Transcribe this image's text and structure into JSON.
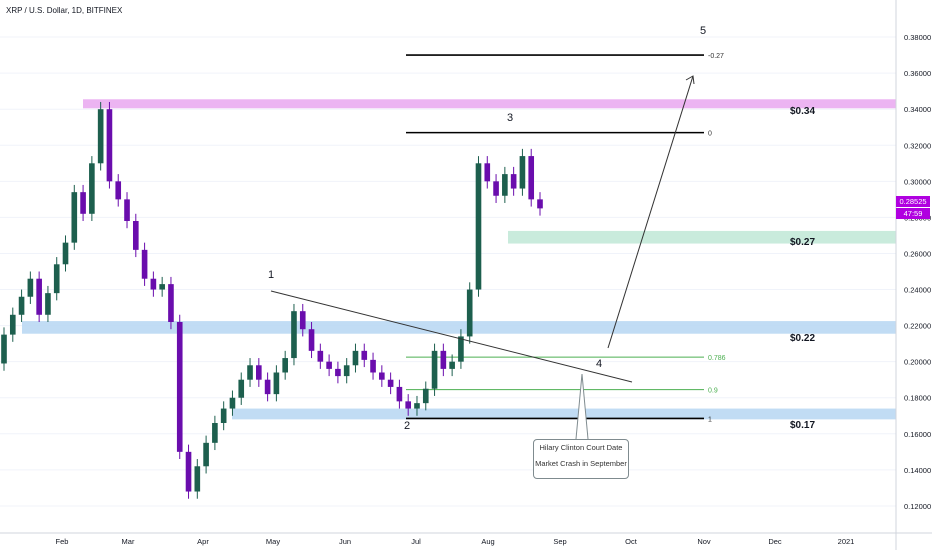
{
  "header": {
    "symbol": "XRP / U.S. Dollar, 1D, BITFINEX"
  },
  "price_axis": {
    "labels": [
      "0.38000",
      "0.36000",
      "0.34000",
      "0.32000",
      "0.30000",
      "0.28000",
      "0.26000",
      "0.24000",
      "0.22000",
      "0.20000",
      "0.18000",
      "0.16000",
      "0.14000",
      "0.12000"
    ],
    "current_price": "0.28525",
    "countdown": "47:59"
  },
  "time_axis": {
    "labels": [
      "Feb",
      "Mar",
      "Apr",
      "May",
      "Jun",
      "Jul",
      "Aug",
      "Sep",
      "Oct",
      "Nov",
      "Dec",
      "2021"
    ]
  },
  "zones": {
    "colors": {
      "resistance": "#e9a7f0",
      "support": "#b6d6f2",
      "green_support": "#bfe8d6"
    },
    "levels": [
      {
        "label": "$0.34",
        "from": 0.3405,
        "to": 0.3455,
        "color": "#e9a7f0"
      },
      {
        "label": "$0.27",
        "from": 0.2655,
        "to": 0.2725,
        "color": "#bfe8d6"
      },
      {
        "label": "$0.22",
        "from": 0.2155,
        "to": 0.2225,
        "color": "#b6d6f2"
      },
      {
        "label": "$0.17",
        "from": 0.168,
        "to": 0.174,
        "color": "#b6d6f2"
      }
    ]
  },
  "fib": [
    {
      "label": "-0.27",
      "price": 0.37,
      "color": "#000000"
    },
    {
      "label": "0",
      "price": 0.327,
      "color": "#000000"
    },
    {
      "label": "0.786",
      "price": 0.2025,
      "color": "#4caf50"
    },
    {
      "label": "0.9",
      "price": 0.1845,
      "color": "#4caf50"
    },
    {
      "label": "1",
      "price": 0.1685,
      "color": "#000000"
    }
  ],
  "waves": [
    "1",
    "2",
    "3",
    "4",
    "5"
  ],
  "annotation": {
    "line1": "Hilary Clinton Court Date",
    "line2": "Market Crash in September"
  },
  "chart_data": {
    "type": "candlestick",
    "title": "XRP / U.S. Dollar, 1D, BITFINEX",
    "ylim": [
      0.105,
      0.395
    ],
    "series": [
      {
        "name": "XRP",
        "points": [
          [
            0,
            0.199,
            0.215
          ],
          [
            1,
            0.215,
            0.226
          ],
          [
            2,
            0.226,
            0.236
          ],
          [
            3,
            0.236,
            0.246
          ],
          [
            4,
            0.246,
            0.226
          ],
          [
            5,
            0.226,
            0.238
          ],
          [
            6,
            0.238,
            0.254
          ],
          [
            7,
            0.254,
            0.266
          ],
          [
            8,
            0.266,
            0.294
          ],
          [
            9,
            0.294,
            0.282
          ],
          [
            10,
            0.282,
            0.31
          ],
          [
            11,
            0.31,
            0.34
          ],
          [
            12,
            0.34,
            0.3
          ],
          [
            13,
            0.3,
            0.29
          ],
          [
            14,
            0.29,
            0.278
          ],
          [
            15,
            0.278,
            0.262
          ],
          [
            16,
            0.262,
            0.246
          ],
          [
            17,
            0.246,
            0.24
          ],
          [
            18,
            0.24,
            0.243
          ],
          [
            19,
            0.243,
            0.222
          ],
          [
            20,
            0.222,
            0.15
          ],
          [
            21,
            0.15,
            0.128
          ],
          [
            22,
            0.128,
            0.142
          ],
          [
            23,
            0.142,
            0.155
          ],
          [
            24,
            0.155,
            0.166
          ],
          [
            25,
            0.166,
            0.174
          ],
          [
            26,
            0.174,
            0.18
          ],
          [
            27,
            0.18,
            0.19
          ],
          [
            28,
            0.19,
            0.198
          ],
          [
            29,
            0.198,
            0.19
          ],
          [
            30,
            0.19,
            0.182
          ],
          [
            31,
            0.182,
            0.194
          ],
          [
            32,
            0.194,
            0.202
          ],
          [
            33,
            0.202,
            0.228
          ],
          [
            34,
            0.228,
            0.218
          ],
          [
            35,
            0.218,
            0.206
          ],
          [
            36,
            0.206,
            0.2
          ],
          [
            37,
            0.2,
            0.196
          ],
          [
            38,
            0.196,
            0.192
          ],
          [
            39,
            0.192,
            0.198
          ],
          [
            40,
            0.198,
            0.206
          ],
          [
            41,
            0.206,
            0.201
          ],
          [
            42,
            0.201,
            0.194
          ],
          [
            43,
            0.194,
            0.19
          ],
          [
            44,
            0.19,
            0.186
          ],
          [
            45,
            0.186,
            0.178
          ],
          [
            46,
            0.178,
            0.174
          ],
          [
            47,
            0.174,
            0.177
          ],
          [
            48,
            0.177,
            0.185
          ],
          [
            49,
            0.185,
            0.206
          ],
          [
            50,
            0.206,
            0.196
          ],
          [
            51,
            0.196,
            0.2
          ],
          [
            52,
            0.2,
            0.214
          ],
          [
            53,
            0.214,
            0.24
          ],
          [
            54,
            0.24,
            0.31
          ],
          [
            55,
            0.31,
            0.3
          ],
          [
            56,
            0.3,
            0.292
          ],
          [
            57,
            0.292,
            0.304
          ],
          [
            58,
            0.304,
            0.296
          ],
          [
            59,
            0.296,
            0.314
          ],
          [
            60,
            0.314,
            0.29
          ],
          [
            61,
            0.29,
            0.285
          ]
        ]
      }
    ]
  }
}
